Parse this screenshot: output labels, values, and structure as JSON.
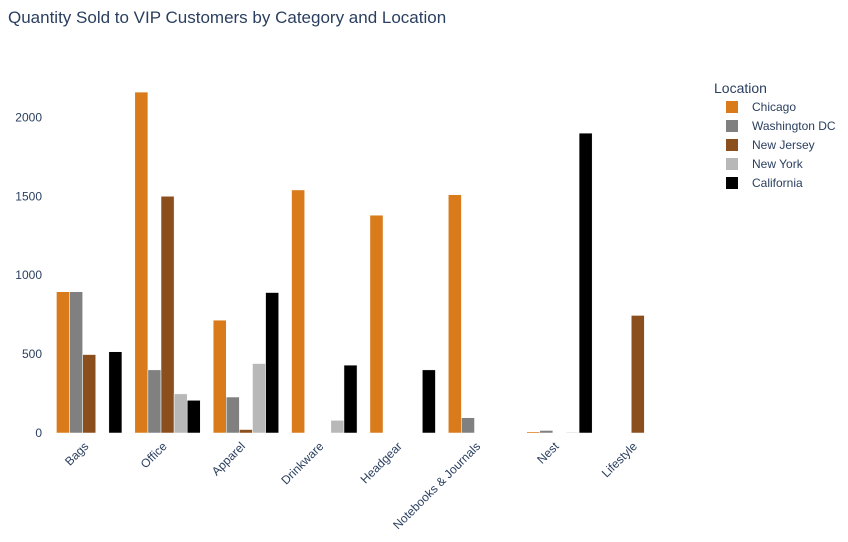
{
  "chart_data": {
    "type": "bar",
    "title": "Quantity Sold to VIP Customers by Category and Location",
    "xlabel": "",
    "ylabel": "",
    "ylim": [
      0,
      2300
    ],
    "yticks": [
      0,
      500,
      1000,
      1500,
      2000
    ],
    "grid": false,
    "legend_title": "Location",
    "legend_position": "top-right",
    "categories": [
      "Bags",
      "Office",
      "Apparel",
      "Drinkware",
      "Headgear",
      "Notebooks & Journals",
      "Nest",
      "Lifestyle"
    ],
    "series": [
      {
        "name": "Chicago",
        "color": "#d97b1b",
        "values": [
          895,
          2160,
          715,
          1540,
          1380,
          1510,
          8,
          0
        ]
      },
      {
        "name": "Washington DC",
        "color": "#808080",
        "values": [
          895,
          400,
          228,
          0,
          0,
          97,
          16,
          0
        ]
      },
      {
        "name": "New Jersey",
        "color": "#8b4f1e",
        "values": [
          497,
          1500,
          22,
          0,
          0,
          0,
          0,
          745
        ]
      },
      {
        "name": "New York",
        "color": "#b8b8b8",
        "values": [
          0,
          248,
          440,
          80,
          0,
          0,
          5,
          0
        ]
      },
      {
        "name": "California",
        "color": "#000000",
        "values": [
          515,
          207,
          890,
          430,
          400,
          0,
          1900,
          0
        ]
      }
    ]
  }
}
